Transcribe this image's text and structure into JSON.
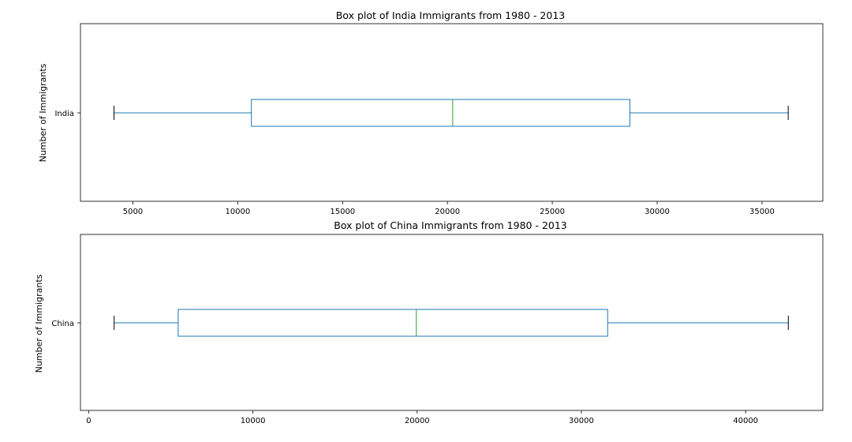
{
  "chart_data": [
    {
      "type": "box",
      "orientation": "horizontal",
      "title": "Box plot of India Immigrants from 1980 - 2013",
      "xlabel": "",
      "ylabel": "Number of Immigrants",
      "categories": [
        "India"
      ],
      "series": [
        {
          "name": "India",
          "whisker_low": 4100,
          "q1": 10650,
          "median": 20250,
          "q3": 28700,
          "whisker_high": 36250
        }
      ],
      "xlim": [
        2500,
        37900
      ],
      "xticks": [
        5000,
        10000,
        15000,
        20000,
        25000,
        30000,
        35000
      ],
      "xtick_labels": [
        "5000",
        "10000",
        "15000",
        "20000",
        "25000",
        "30000",
        "35000"
      ],
      "grid": false
    },
    {
      "type": "box",
      "orientation": "horizontal",
      "title": "Box plot of China Immigrants from 1980 - 2013",
      "xlabel": "",
      "ylabel": "Number of Immigrants",
      "categories": [
        "China"
      ],
      "series": [
        {
          "name": "China",
          "whisker_low": 1550,
          "q1": 5450,
          "median": 19950,
          "q3": 31600,
          "whisker_high": 42600
        }
      ],
      "xlim": [
        -500,
        44700
      ],
      "xticks": [
        0,
        10000,
        20000,
        30000,
        40000
      ],
      "xtick_labels": [
        "0",
        "10000",
        "20000",
        "30000",
        "40000"
      ],
      "grid": false
    }
  ],
  "colors": {
    "box": "#1f77b4",
    "median": "#2ca02c",
    "caps": "#000000",
    "frame": "#000000",
    "background": "#ffffff"
  }
}
